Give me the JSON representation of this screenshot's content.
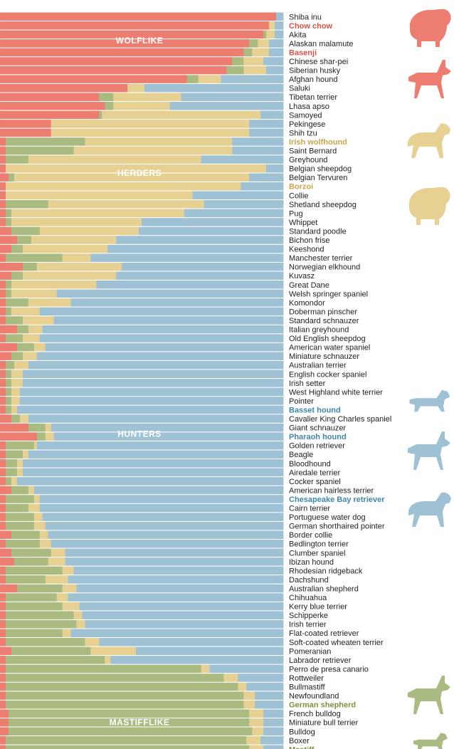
{
  "colors": {
    "wolflike": "#ee7d71",
    "herders": "#e6d192",
    "hunters": "#9ec1d4",
    "mastifflike": "#a9bb80",
    "highlight_red": "#d9534a",
    "highlight_yellow": "#c9a64a",
    "highlight_blue": "#3f86a9",
    "highlight_green": "#7d913f"
  },
  "icons": [
    {
      "name": "chow-chow-silhouette-icon",
      "color": "#ee7d71"
    },
    {
      "name": "basenji-silhouette-icon",
      "color": "#ee7d71"
    },
    {
      "name": "irish-wolfhound-silhouette-icon",
      "color": "#e6d192"
    },
    {
      "name": "borzoi-silhouette-icon",
      "color": "#e6d192"
    },
    {
      "name": "basset-hound-silhouette-icon",
      "color": "#9ec1d4"
    },
    {
      "name": "pharaoh-hound-silhouette-icon",
      "color": "#9ec1d4"
    },
    {
      "name": "chesapeake-bay-retriever-silhouette-icon",
      "color": "#9ec1d4"
    },
    {
      "name": "german-shepherd-silhouette-icon",
      "color": "#a9bb80"
    },
    {
      "name": "mastiff-silhouette-icon",
      "color": "#a9bb80"
    }
  ],
  "chart_data": {
    "type": "bar",
    "orientation": "horizontal",
    "stacked": true,
    "normalized": true,
    "series_names": [
      "WOLFLIKE",
      "MASTIFFLIKE",
      "HERDERS",
      "HUNTERS"
    ],
    "group_labels": [
      "WOLFLIKE",
      "HERDERS",
      "HUNTERS",
      "MASTIFFLIKE"
    ],
    "highlighted": {
      "Chow chow": "red",
      "Basenji": "red",
      "Irish wolfhound": "yellow",
      "Borzoi": "yellow",
      "Basset hound": "blue",
      "Pharaoh hound": "blue",
      "Chesapeake Bay retriever": "blue",
      "German shepherd": "green",
      "Mastiff": "green"
    },
    "categories": [
      "Shiba inu",
      "Chow chow",
      "Akita",
      "Alaskan malamute",
      "Basenji",
      "Chinese shar-pei",
      "Siberian husky",
      "Afghan hound",
      "Saluki",
      "Tibetan terrier",
      "Lhasa apso",
      "Samoyed",
      "Pekingese",
      "Shih tzu",
      "Irish wolfhound",
      "Saint Bernard",
      "Greyhound",
      "Belgian sheepdog",
      "Belgian Tervuren",
      "Borzoi",
      "Collie",
      "Shetland sheepdog",
      "Pug",
      "Whippet",
      "Standard poodle",
      "Bichon frise",
      "Keeshond",
      "Manchester terrier",
      "Norwegian elkhound",
      "Kuvasz",
      "Great Dane",
      "Welsh springer spaniel",
      "Komondor",
      "Doberman pinscher",
      "Standard schnauzer",
      "Italian greyhound",
      "Old English sheepdog",
      "American water spaniel",
      "Miniature schnauzer",
      "Australian terrier",
      "English cocker spaniel",
      "Irish setter",
      "West Highland white terrier",
      "Pointer",
      "Basset hound",
      "Cavalier King Charles spaniel",
      "Giant schnauzer",
      "Pharaoh hound",
      "Golden retriever",
      "Beagle",
      "Bloodhound",
      "Airedale terrier",
      "Cocker spaniel",
      "American hairless terrier",
      "Chesapeake Bay retriever",
      "Cairn terrier",
      "Portuguese water dog",
      "German shorthaired pointer",
      "Border collie",
      "Bedlington terrier",
      "Clumber spaniel",
      "Ibizan hound",
      "Rhodesian ridgeback",
      "Dachshund",
      "Australian shepherd",
      "Chihuahua",
      "Kerry blue terrier",
      "Schipperke",
      "Irish terrier",
      "Flat-coated retriever",
      "Soft-coated wheaten terrier",
      "Pomeranian",
      "Labrador retriever",
      "Perro de presa canario",
      "Rottweiler",
      "Bullmastiff",
      "Newfoundland",
      "German shepherd",
      "French bulldog",
      "Miniature bull terrier",
      "Bulldog",
      "Boxer",
      "Mastiff"
    ],
    "wolflike": [
      0.975,
      0.95,
      0.93,
      0.88,
      0.86,
      0.82,
      0.8,
      0.66,
      0.45,
      0.35,
      0.37,
      0.35,
      0.18,
      0.18,
      0.02,
      0.02,
      0.02,
      0.02,
      0.03,
      0.02,
      0.02,
      0.02,
      0.02,
      0.02,
      0.04,
      0.06,
      0.04,
      0.02,
      0.08,
      0.04,
      0.02,
      0.02,
      0.02,
      0.02,
      0.02,
      0.06,
      0.02,
      0.06,
      0.04,
      0.02,
      0.02,
      0.02,
      0.02,
      0.02,
      0.02,
      0.04,
      0.1,
      0.13,
      0.02,
      0.02,
      0.02,
      0.02,
      0.02,
      0.04,
      0.02,
      0.02,
      0.02,
      0.02,
      0.04,
      0.02,
      0.04,
      0.05,
      0.02,
      0.02,
      0.06,
      0.02,
      0.02,
      0.02,
      0.02,
      0.02,
      0.02,
      0.04,
      0.02,
      0.02,
      0.02,
      0.02,
      0.02,
      0.02,
      0.03,
      0.03,
      0.03,
      0.02,
      0.02
    ],
    "mastifflike": [
      0.0,
      0.0,
      0.01,
      0.03,
      0.03,
      0.04,
      0.06,
      0.04,
      0.0,
      0.05,
      0.03,
      0.01,
      0.0,
      0.0,
      0.28,
      0.24,
      0.08,
      0.0,
      0.02,
      0.0,
      0.0,
      0.15,
      0.02,
      0.02,
      0.1,
      0.05,
      0.04,
      0.2,
      0.05,
      0.04,
      0.02,
      0.02,
      0.08,
      0.02,
      0.06,
      0.04,
      0.06,
      0.06,
      0.04,
      0.03,
      0.02,
      0.02,
      0.02,
      0.02,
      0.02,
      0.03,
      0.06,
      0.03,
      0.1,
      0.06,
      0.04,
      0.04,
      0.02,
      0.06,
      0.1,
      0.08,
      0.1,
      0.1,
      0.1,
      0.12,
      0.14,
      0.12,
      0.2,
      0.14,
      0.16,
      0.18,
      0.2,
      0.24,
      0.25,
      0.2,
      0.28,
      0.28,
      0.35,
      0.69,
      0.77,
      0.82,
      0.84,
      0.84,
      0.85,
      0.85,
      0.86,
      0.85,
      0.86
    ],
    "herders": [
      0.0,
      0.02,
      0.03,
      0.04,
      0.06,
      0.07,
      0.08,
      0.08,
      0.06,
      0.24,
      0.2,
      0.56,
      0.7,
      0.7,
      0.52,
      0.56,
      0.61,
      0.92,
      0.83,
      0.83,
      0.66,
      0.55,
      0.61,
      0.46,
      0.35,
      0.3,
      0.3,
      0.1,
      0.3,
      0.33,
      0.3,
      0.16,
      0.15,
      0.1,
      0.11,
      0.05,
      0.06,
      0.04,
      0.05,
      0.05,
      0.04,
      0.04,
      0.03,
      0.03,
      0.02,
      0.03,
      0.02,
      0.03,
      0.01,
      0.02,
      0.02,
      0.02,
      0.02,
      0.02,
      0.02,
      0.04,
      0.03,
      0.04,
      0.03,
      0.04,
      0.05,
      0.06,
      0.04,
      0.08,
      0.05,
      0.04,
      0.06,
      0.03,
      0.03,
      0.03,
      0.05,
      0.16,
      0.02,
      0.03,
      0.05,
      0.03,
      0.04,
      0.04,
      0.05,
      0.05,
      0.04,
      0.05,
      0.05
    ],
    "ylabel": "",
    "xlabel": ""
  }
}
